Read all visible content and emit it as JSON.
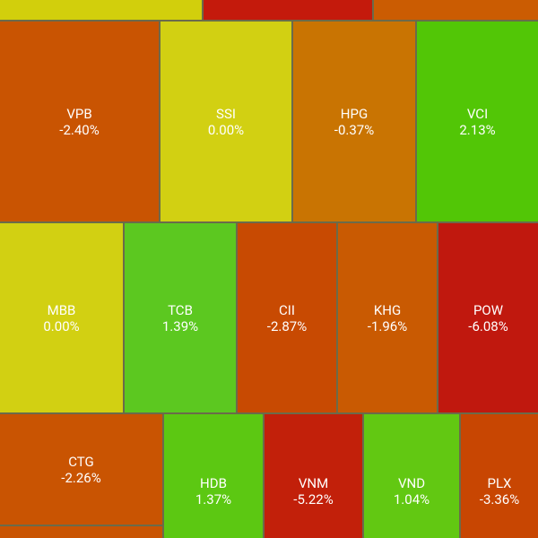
{
  "tiles": [
    {
      "symbol": "VPB",
      "change": "-2.40%"
    },
    {
      "symbol": "SSI",
      "change": "0.00%"
    },
    {
      "symbol": "HPG",
      "change": "-0.37%"
    },
    {
      "symbol": "VCI",
      "change": "2.13%"
    },
    {
      "symbol": "MBB",
      "change": "0.00%"
    },
    {
      "symbol": "TCB",
      "change": "1.39%"
    },
    {
      "symbol": "CII",
      "change": "-2.87%"
    },
    {
      "symbol": "KHG",
      "change": "-1.96%"
    },
    {
      "symbol": "POW",
      "change": "-6.08%"
    },
    {
      "symbol": "CTG",
      "change": "-2.26%"
    },
    {
      "symbol": "HDB",
      "change": "1.37%"
    },
    {
      "symbol": "VNM",
      "change": "-5.22%"
    },
    {
      "symbol": "VND",
      "change": "1.04%"
    },
    {
      "symbol": "PLX",
      "change": "-3.36%"
    }
  ]
}
